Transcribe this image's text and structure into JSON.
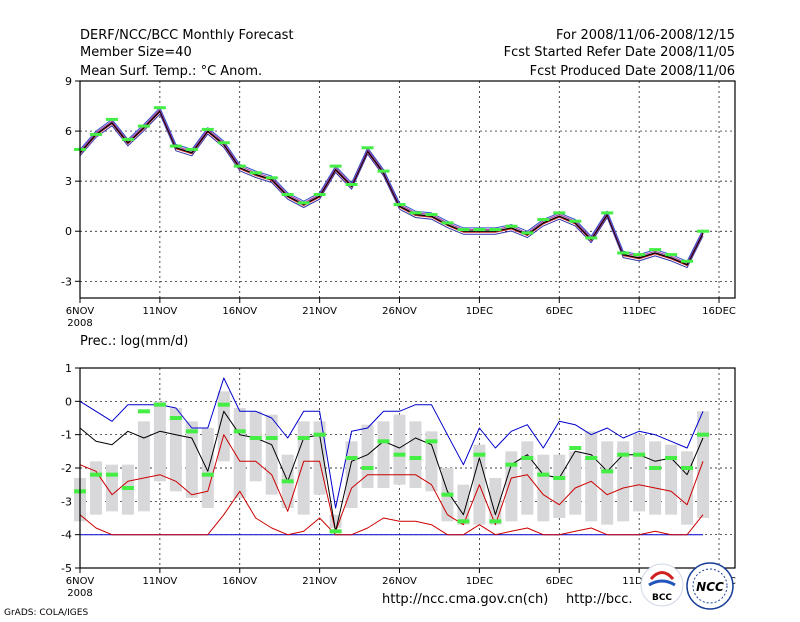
{
  "header": {
    "title_line1": "DERF/NCC/BCC Monthly Forecast",
    "title_line2": "Member Size=40",
    "title_line3": "Mean Surf. Temp.: °C Anom.",
    "period": "For 2008/11/06-2008/12/15",
    "started": "Fcst Started Refer Date 2008/11/05",
    "produced": "Fcst Produced Date 2008/11/06"
  },
  "footer": {
    "grads_credit": "GrADS: COLA/IGES",
    "url_ncc": "http://ncc.cma.gov.cn(ch)",
    "url_bcc": "http://bcc.",
    "logo_bcc_text": "BCC",
    "logo_ncc_text": "NCC"
  },
  "colors": {
    "grid": "#000000",
    "whisker_box": "#d8d8db",
    "upper_line": "#0000cc",
    "median_line": "#000000",
    "lower_line": "#cc0000",
    "marker": "#44ee44"
  },
  "chart_data": [
    {
      "type": "line",
      "title": "Mean Surf. Temp.: °C Anom.",
      "x_tick_labels": [
        "6NOV",
        "11NOV",
        "16NOV",
        "21NOV",
        "26NOV",
        "1DEC",
        "6DEC",
        "11DEC",
        "16DEC"
      ],
      "x_tick_days": [
        0,
        5,
        10,
        15,
        20,
        25,
        30,
        35,
        40
      ],
      "x_year_label": "2008",
      "ylim": [
        -4,
        9
      ],
      "y_ticks": [
        9,
        6,
        3,
        0,
        -3
      ],
      "x_day": [
        0,
        1,
        2,
        3,
        4,
        5,
        6,
        7,
        8,
        9,
        10,
        11,
        12,
        13,
        14,
        15,
        16,
        17,
        18,
        19,
        20,
        21,
        22,
        23,
        24,
        25,
        26,
        27,
        28,
        29,
        30,
        31,
        32,
        33,
        34,
        35,
        36,
        37,
        38,
        39
      ],
      "series": [
        {
          "name": "ensemble members",
          "values": [
            4.7,
            5.8,
            6.5,
            5.3,
            6.2,
            7.2,
            5.0,
            4.7,
            6.0,
            5.2,
            3.8,
            3.4,
            3.1,
            2.1,
            1.6,
            2.1,
            3.7,
            2.7,
            4.8,
            3.5,
            1.5,
            1.0,
            0.9,
            0.4,
            0.0,
            0.0,
            0.0,
            0.2,
            -0.2,
            0.5,
            0.9,
            0.5,
            -0.5,
            1.0,
            -1.4,
            -1.6,
            -1.3,
            -1.6,
            -2.0,
            -0.1
          ]
        },
        {
          "name": "forecast mean",
          "values": [
            4.9,
            5.8,
            6.7,
            5.5,
            6.3,
            7.4,
            5.1,
            4.9,
            6.1,
            5.3,
            3.9,
            3.5,
            3.2,
            2.2,
            1.7,
            2.2,
            3.9,
            2.8,
            5.0,
            3.6,
            1.6,
            1.1,
            1.0,
            0.5,
            0.1,
            0.1,
            0.1,
            0.3,
            -0.1,
            0.7,
            1.1,
            0.6,
            -0.4,
            1.1,
            -1.3,
            -1.4,
            -1.1,
            -1.4,
            -1.8,
            0.0
          ]
        }
      ]
    },
    {
      "type": "line",
      "title": "Prec.: log(mm/d)",
      "x_tick_labels": [
        "6NOV",
        "11NOV",
        "16NOV",
        "21NOV",
        "26NOV",
        "1DEC",
        "6DEC",
        "11DEC",
        "16DEC"
      ],
      "x_tick_days": [
        0,
        5,
        10,
        15,
        20,
        25,
        30,
        35,
        40
      ],
      "x_year_label": "2008",
      "ylim": [
        -5,
        1
      ],
      "y_ticks": [
        1,
        0,
        -1,
        -2,
        -3,
        -4,
        -5
      ],
      "x_day": [
        0,
        1,
        2,
        3,
        4,
        5,
        6,
        7,
        8,
        9,
        10,
        11,
        12,
        13,
        14,
        15,
        16,
        17,
        18,
        19,
        20,
        21,
        22,
        23,
        24,
        25,
        26,
        27,
        28,
        29,
        30,
        31,
        32,
        33,
        34,
        35,
        36,
        37,
        38,
        39
      ],
      "box_low": [
        -3.6,
        -3.4,
        -3.3,
        -3.4,
        -3.3,
        -2.4,
        -2.7,
        -2.9,
        -3.2,
        -1.8,
        -2.9,
        -2.4,
        -2.8,
        -3.2,
        -3.4,
        -2.8,
        -3.8,
        -3.2,
        -2.6,
        -2.6,
        -2.5,
        -2.6,
        -2.7,
        -3.6,
        -3.7,
        -3.7,
        -3.7,
        -3.6,
        -3.4,
        -3.6,
        -3.5,
        -3.4,
        -3.6,
        -3.7,
        -3.6,
        -3.3,
        -3.4,
        -3.4,
        -3.7,
        -3.5
      ],
      "box_high": [
        -2.3,
        -1.8,
        -1.9,
        -1.9,
        -0.6,
        0.0,
        -0.2,
        -0.6,
        -0.8,
        0.3,
        -0.2,
        -0.3,
        -0.4,
        -1.6,
        -0.6,
        -0.6,
        -3.4,
        -1.2,
        -0.7,
        -0.6,
        -0.4,
        -0.6,
        -0.9,
        -2.0,
        -2.5,
        -1.3,
        -2.3,
        -1.5,
        -1.2,
        -1.6,
        -1.6,
        -1.5,
        -0.9,
        -1.2,
        -1.2,
        -1.0,
        -1.2,
        -1.3,
        -1.5,
        -0.3
      ],
      "series": [
        {
          "name": "upper",
          "values": [
            0.0,
            -0.3,
            -0.6,
            -0.1,
            -0.1,
            -0.1,
            -0.2,
            -0.8,
            -0.8,
            0.7,
            -0.3,
            -0.3,
            -0.5,
            -1.1,
            -0.3,
            -0.3,
            -3.2,
            -0.9,
            -0.8,
            -0.3,
            -0.3,
            -0.1,
            -0.1,
            -1.0,
            -1.9,
            -0.8,
            -1.4,
            -0.9,
            -0.7,
            -1.4,
            -0.6,
            -0.7,
            -1.0,
            -0.8,
            -1.1,
            -0.9,
            -1.0,
            -1.2,
            -1.4,
            -0.3
          ]
        },
        {
          "name": "median",
          "values": [
            -0.8,
            -1.2,
            -1.3,
            -0.9,
            -1.1,
            -0.9,
            -1.0,
            -1.1,
            -2.1,
            -0.3,
            -1.0,
            -1.1,
            -1.3,
            -2.4,
            -1.1,
            -1.0,
            -3.9,
            -1.8,
            -1.6,
            -1.2,
            -1.4,
            -1.1,
            -1.3,
            -2.7,
            -3.4,
            -1.7,
            -3.4,
            -1.9,
            -1.6,
            -2.2,
            -2.3,
            -1.5,
            -1.6,
            -2.1,
            -1.6,
            -1.6,
            -1.8,
            -1.7,
            -2.2,
            -1.1
          ]
        },
        {
          "name": "lower",
          "values": [
            -1.9,
            -2.1,
            -2.8,
            -2.4,
            -2.3,
            -2.2,
            -2.4,
            -2.8,
            -2.7,
            -1.0,
            -1.8,
            -1.8,
            -2.2,
            -3.3,
            -1.8,
            -1.8,
            -3.9,
            -2.6,
            -2.2,
            -2.2,
            -2.2,
            -2.2,
            -2.5,
            -3.4,
            -3.7,
            -2.5,
            -3.7,
            -2.3,
            -2.2,
            -2.8,
            -3.1,
            -2.6,
            -2.4,
            -2.8,
            -2.6,
            -2.5,
            -2.6,
            -2.7,
            -3.1,
            -1.8
          ]
        },
        {
          "name": "minimum",
          "values": [
            -3.4,
            -3.8,
            -4.0,
            -4.0,
            -4.0,
            -4.0,
            -4.0,
            -4.0,
            -4.0,
            -3.4,
            -2.7,
            -3.5,
            -3.8,
            -4.0,
            -3.9,
            -3.5,
            -4.0,
            -4.0,
            -3.8,
            -3.5,
            -3.6,
            -3.6,
            -3.7,
            -4.0,
            -4.0,
            -3.7,
            -4.0,
            -3.9,
            -3.8,
            -4.0,
            -4.0,
            -3.9,
            -3.8,
            -4.0,
            -4.0,
            -4.0,
            -3.9,
            -4.0,
            -4.0,
            -3.4
          ]
        },
        {
          "name": "floor",
          "values": [
            -4,
            -4,
            -4,
            -4,
            -4,
            -4,
            -4,
            -4,
            -4,
            -4,
            -4,
            -4,
            -4,
            -4,
            -4,
            -4,
            -4,
            -4,
            -4,
            -4,
            -4,
            -4,
            -4,
            -4,
            -4,
            -4,
            -4,
            -4,
            -4,
            -4,
            -4,
            -4,
            -4,
            -4,
            -4,
            -4,
            -4,
            -4,
            -4,
            -4
          ]
        }
      ],
      "markers": [
        -2.7,
        -2.2,
        -2.2,
        -2.6,
        -0.3,
        -0.1,
        -0.5,
        -0.9,
        -2.2,
        -0.1,
        -0.9,
        -1.1,
        -1.1,
        -2.4,
        -1.1,
        -1.0,
        -3.9,
        -1.7,
        -2.0,
        -1.2,
        -1.6,
        -1.7,
        -1.2,
        -2.8,
        -3.6,
        -1.6,
        -3.6,
        -1.9,
        -1.7,
        -2.2,
        -2.3,
        -1.4,
        -1.7,
        -2.1,
        -1.6,
        -1.6,
        -2.0,
        -1.7,
        -2.0,
        -1.0
      ]
    }
  ]
}
